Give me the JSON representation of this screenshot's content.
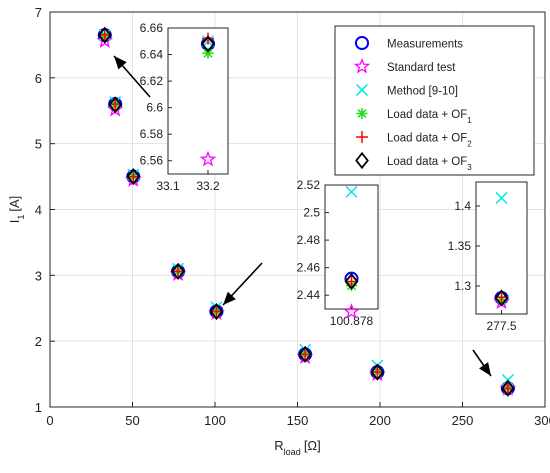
{
  "chart_data": {
    "main": {
      "type": "scatter",
      "xlabel": "R",
      "xlabel_sub": "load",
      "xlabel_unit": "[Ω]",
      "ylabel": "I",
      "ylabel_sub": "1",
      "ylabel_unit": "[A]",
      "xlim": [
        0,
        300
      ],
      "ylim": [
        1,
        7
      ],
      "xticks": [
        "0",
        "50",
        "100",
        "150",
        "200",
        "250",
        "300"
      ],
      "yticks": [
        "1",
        "2",
        "3",
        "4",
        "5",
        "6",
        "7"
      ],
      "grid": true,
      "legend_position": "top-right",
      "x": [
        33.2,
        39.5,
        50.5,
        77.6,
        100.878,
        154.6,
        198.4,
        277.5
      ],
      "series": [
        {
          "name": "Measurements",
          "sub": "",
          "marker": "circle",
          "color": "#0000ff",
          "values": [
            6.648,
            5.6,
            4.5,
            3.06,
            2.452,
            1.8,
            1.53,
            1.285
          ]
        },
        {
          "name": "Standard test",
          "sub": "",
          "marker": "star",
          "color": "#ff00ff",
          "values": [
            6.561,
            5.52,
            4.45,
            3.02,
            2.428,
            1.76,
            1.5,
            1.28
          ]
        },
        {
          "name": "Method [9-10]",
          "sub": "",
          "marker": "x",
          "color": "#00e5e5",
          "values": [
            6.65,
            5.63,
            4.53,
            3.1,
            2.515,
            1.87,
            1.63,
            1.41
          ]
        },
        {
          "name": "Load data + OF",
          "sub": "1",
          "marker": "asterisk",
          "color": "#22dd22",
          "values": [
            6.641,
            5.59,
            4.5,
            3.06,
            2.447,
            1.8,
            1.53,
            1.283
          ]
        },
        {
          "name": "Load data + OF",
          "sub": "2",
          "marker": "plus",
          "color": "#ff0000",
          "values": [
            6.652,
            5.6,
            4.5,
            3.06,
            2.45,
            1.8,
            1.53,
            1.286
          ]
        },
        {
          "name": "Load data + OF",
          "sub": "3",
          "marker": "diamond",
          "color": "#000000",
          "values": [
            6.648,
            5.59,
            4.5,
            3.06,
            2.45,
            1.8,
            1.53,
            1.285
          ]
        }
      ]
    },
    "insets": [
      {
        "xlim": [
          33.1,
          33.25
        ],
        "ylim": [
          6.55,
          6.66
        ],
        "xticks": [
          33.1,
          33.2
        ],
        "xtick_labels": [
          "33.1",
          "33.2"
        ],
        "yticks": [
          6.56,
          6.58,
          6.6,
          6.62,
          6.64,
          6.66
        ],
        "ytick_labels": [
          "6.56",
          "6.58",
          "6.6",
          "6.62",
          "6.64",
          "6.66"
        ],
        "point_index": 0
      },
      {
        "xlim": [
          100.8,
          100.956
        ],
        "ylim": [
          2.43,
          2.52
        ],
        "xticks": [
          100.878
        ],
        "xtick_labels": [
          "100.878"
        ],
        "yticks": [
          2.44,
          2.46,
          2.48,
          2.5,
          2.52
        ],
        "ytick_labels": [
          "2.44",
          "2.46",
          "2.48",
          "2.5",
          "2.52"
        ],
        "point_index": 4
      },
      {
        "xlim": [
          277.4,
          277.6
        ],
        "ylim": [
          1.265,
          1.43
        ],
        "xticks": [
          277.5
        ],
        "xtick_labels": [
          "277.5"
        ],
        "yticks": [
          1.3,
          1.35,
          1.4
        ],
        "ytick_labels": [
          "1.3",
          "1.35",
          "1.4"
        ],
        "point_index": 7
      }
    ]
  }
}
